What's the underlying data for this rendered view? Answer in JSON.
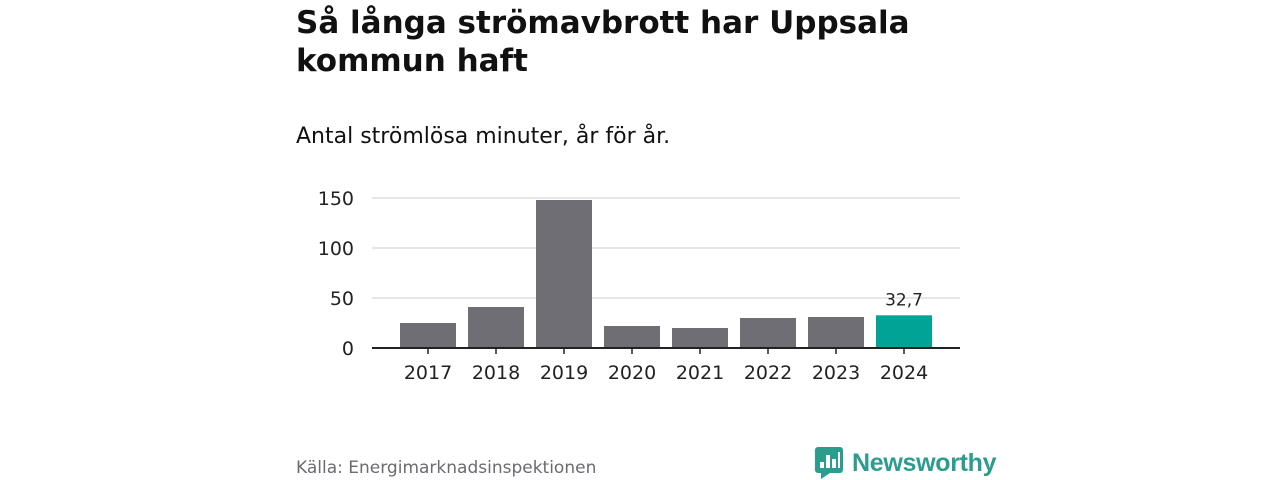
{
  "title": "Så långa strömavbrott har Uppsala kommun haft",
  "subtitle": "Antal strömlösa minuter, år för år.",
  "source": "Källa: Energimarknadsinspektionen",
  "brand": {
    "name": "Newsworthy",
    "icon": "newsworthy-logo-icon",
    "color": "#2a9d8f"
  },
  "colors": {
    "bar": "#6f6e74",
    "highlight": "#00a396",
    "grid": "#dddddd",
    "axis": "#222222"
  },
  "chart_data": {
    "type": "bar",
    "title": "Så långa strömavbrott har Uppsala kommun haft",
    "subtitle": "Antal strömlösa minuter, år för år.",
    "xlabel": "",
    "ylabel": "",
    "categories": [
      "2017",
      "2018",
      "2019",
      "2020",
      "2021",
      "2022",
      "2023",
      "2024"
    ],
    "values": [
      25,
      41,
      148,
      22,
      20,
      30,
      31,
      32.7
    ],
    "highlight_index": 7,
    "highlight_label": "32,7",
    "ylim": [
      0,
      150
    ],
    "yticks": [
      0,
      50,
      100,
      150
    ],
    "ytick_labels": [
      "0",
      "50",
      "100",
      "150"
    ],
    "grid": true,
    "legend": "none"
  }
}
